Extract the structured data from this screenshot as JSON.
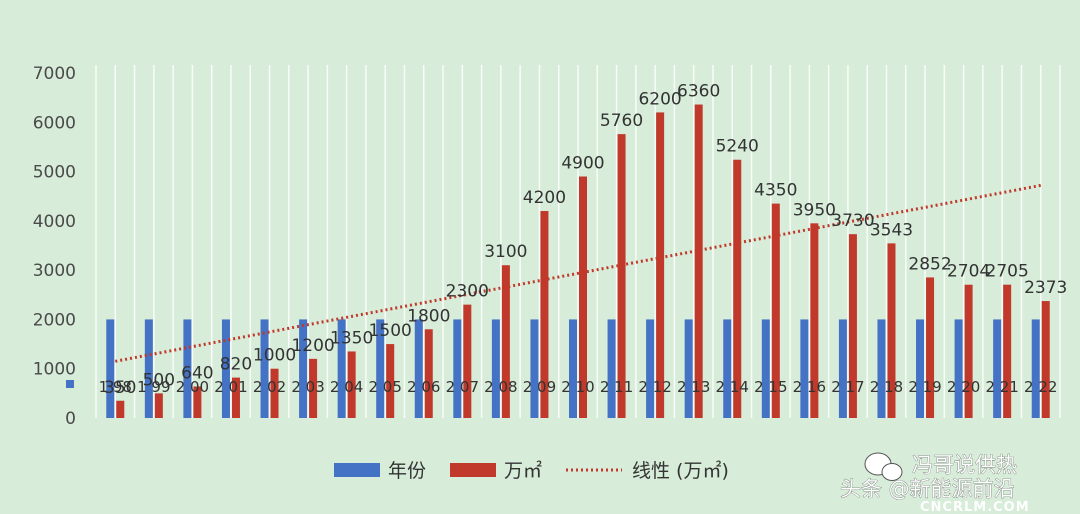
{
  "chart_data": {
    "type": "bar",
    "categories": [
      "1998",
      "1999",
      "2000",
      "2001",
      "2002",
      "2003",
      "2004",
      "2005",
      "2006",
      "2007",
      "2008",
      "2009",
      "2010",
      "2011",
      "2012",
      "2013",
      "2014",
      "2015",
      "2016",
      "2017",
      "2018",
      "2019",
      "2020",
      "2021",
      "2022"
    ],
    "category_labels": [
      "1 98",
      "1 99",
      "2 00",
      "2 01",
      "2 02",
      "2 03",
      "2 04",
      "2 05",
      "2 06",
      "2 07",
      "2 08",
      "2 09",
      "2 10",
      "2 11",
      "2 12",
      "2 13",
      "2 14",
      "2 15",
      "2 16",
      "2 17",
      "2 18",
      "2 19",
      "2 20",
      "2 21",
      "2 22"
    ],
    "series": [
      {
        "name": "年份",
        "color": "#4472c4",
        "values": [
          2000,
          2000,
          2000,
          2000,
          2000,
          2000,
          2000,
          2000,
          2000,
          2000,
          2000,
          2000,
          2000,
          2000,
          2000,
          2000,
          2000,
          2000,
          2000,
          2000,
          2000,
          2000,
          2000,
          2000,
          2000
        ]
      },
      {
        "name": "万㎡",
        "color": "#c0392b",
        "values": [
          350,
          500,
          640,
          820,
          1000,
          1200,
          1350,
          1500,
          1800,
          2300,
          3100,
          4200,
          4900,
          5760,
          6200,
          6360,
          5240,
          4350,
          3950,
          3730,
          3543,
          2852,
          2704,
          2705,
          2373
        ],
        "labels": [
          "350",
          "500",
          "640",
          "820",
          "1000",
          "1200",
          "1350",
          "1500",
          "1800",
          "2300",
          "3100",
          "4200",
          "4900",
          "5760",
          "6200",
          "6360",
          "5240",
          "4350",
          "3950",
          "3730",
          "3543",
          "2852",
          "2704",
          "2705",
          "2373"
        ]
      }
    ],
    "trendline": {
      "name": "线性 (万㎡)",
      "color": "#c0392b",
      "start": 1150,
      "end": 4720
    },
    "ylim": [
      0,
      7000
    ],
    "yticks": [
      "0",
      "1000",
      "2000",
      "3000",
      "4000",
      "5000",
      "6000",
      "7000"
    ],
    "grid": true,
    "legend": "bottom"
  },
  "watermark": {
    "line1": "冯哥说供热",
    "line2": "头条 @新能源前沿",
    "line3": "CNCRLM.COM"
  }
}
